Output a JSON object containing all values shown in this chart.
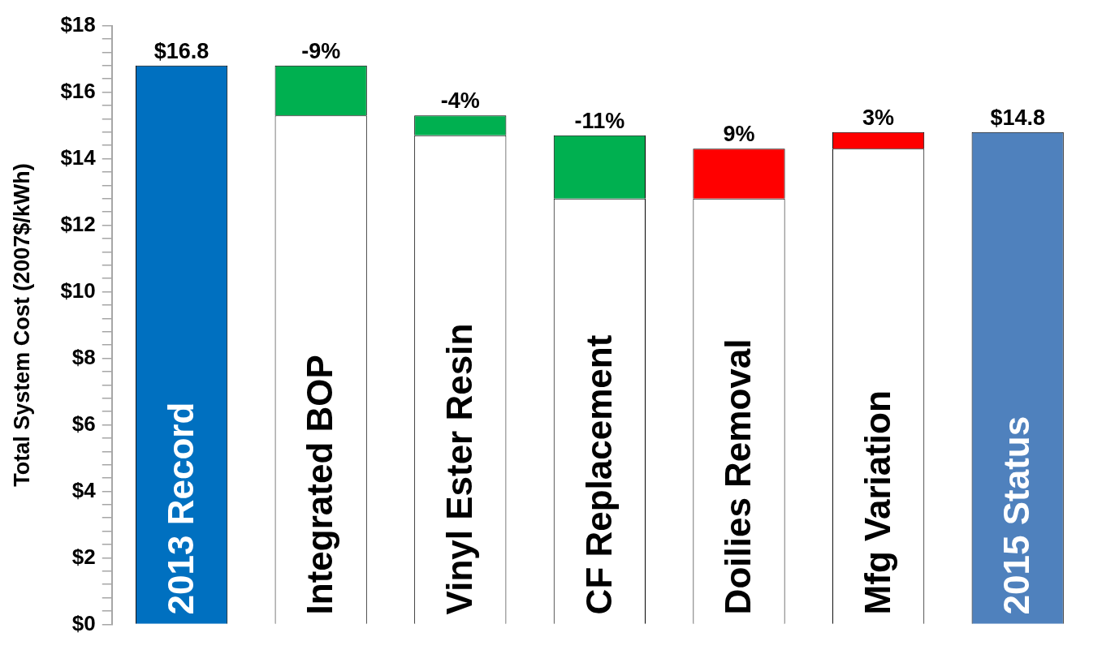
{
  "chart_data": {
    "type": "bar",
    "stacked": true,
    "ylabel": "Total System Cost (2007$/kWh)",
    "categories": [
      "2013 Record",
      "Integrated BOP",
      "Vinyl Ester Resin",
      "CF Replacement",
      "Doilies Removal",
      "Mfg Variation",
      "2015 Status"
    ],
    "series": [
      {
        "color": "#ffffff",
        "values": [
          null,
          15.3,
          14.7,
          12.8,
          12.8,
          14.3,
          null
        ]
      },
      {
        "colors": [
          "#0070c0",
          "#00b050",
          "#00b050",
          "#00b050",
          "#ff0000",
          "#ff0000",
          "#4f81bd"
        ],
        "values": [
          16.8,
          1.5,
          0.6,
          1.9,
          1.5,
          0.5,
          14.8
        ]
      }
    ],
    "annotations": [
      {
        "text": "$16.8",
        "x": "2013 Record",
        "y": 16.8
      },
      {
        "text": "-9%",
        "x": "Integrated BOP",
        "y": 16.8
      },
      {
        "text": "-4%",
        "x": "Vinyl Ester Resin",
        "y": 15.3
      },
      {
        "text": "-11%",
        "x": "CF Replacement",
        "y": 14.7
      },
      {
        "text": "9%",
        "x": "Doilies Removal",
        "y": 14.3
      },
      {
        "text": "3%",
        "x": "Mfg Variation",
        "y": 14.8
      },
      {
        "text": "$14.8",
        "x": "2015 Status",
        "y": 14.8
      }
    ],
    "ylim": [
      0,
      18
    ],
    "yticks": [
      {
        "value": 0,
        "label": "$0"
      },
      {
        "value": 0.4,
        "label": null
      },
      {
        "value": 0.8,
        "label": null
      },
      {
        "value": 1.2,
        "label": null
      },
      {
        "value": 1.6,
        "label": null
      },
      {
        "value": 2,
        "label": "$2"
      },
      {
        "value": 2.4,
        "label": null
      },
      {
        "value": 2.8,
        "label": null
      },
      {
        "value": 3.2,
        "label": null
      },
      {
        "value": 3.6,
        "label": null
      },
      {
        "value": 4,
        "label": "$4"
      },
      {
        "value": 4.4,
        "label": null
      },
      {
        "value": 4.8,
        "label": null
      },
      {
        "value": 5.2,
        "label": null
      },
      {
        "value": 5.6,
        "label": null
      },
      {
        "value": 6,
        "label": "$6"
      },
      {
        "value": 6.4,
        "label": null
      },
      {
        "value": 6.8,
        "label": null
      },
      {
        "value": 7.2,
        "label": null
      },
      {
        "value": 7.6,
        "label": null
      },
      {
        "value": 8,
        "label": "$8"
      },
      {
        "value": 8.4,
        "label": null
      },
      {
        "value": 8.8,
        "label": null
      },
      {
        "value": 9.2,
        "label": null
      },
      {
        "value": 9.6,
        "label": null
      },
      {
        "value": 10,
        "label": "$10"
      },
      {
        "value": 10.4,
        "label": null
      },
      {
        "value": 10.8,
        "label": null
      },
      {
        "value": 11.2,
        "label": null
      },
      {
        "value": 11.6,
        "label": null
      },
      {
        "value": 12,
        "label": "$12"
      },
      {
        "value": 12.4,
        "label": null
      },
      {
        "value": 12.8,
        "label": null
      },
      {
        "value": 13.2,
        "label": null
      },
      {
        "value": 13.6,
        "label": null
      },
      {
        "value": 14,
        "label": "$14"
      },
      {
        "value": 14.4,
        "label": null
      },
      {
        "value": 14.8,
        "label": null
      },
      {
        "value": 15.2,
        "label": null
      },
      {
        "value": 15.6,
        "label": null
      },
      {
        "value": 16,
        "label": "$16"
      },
      {
        "value": 16.4,
        "label": null
      },
      {
        "value": 16.8,
        "label": null
      },
      {
        "value": 17.2,
        "label": null
      },
      {
        "value": 17.6,
        "label": null
      },
      {
        "value": 18,
        "label": "$18"
      }
    ],
    "grid": false,
    "legend": false
  }
}
